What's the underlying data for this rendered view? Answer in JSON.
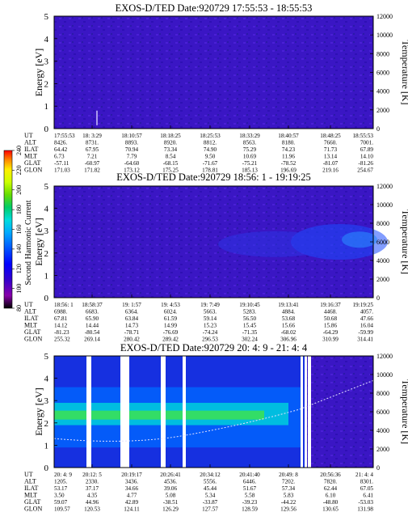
{
  "colorbar": {
    "label": "Second Harmonic Current",
    "ticks": [
      "80",
      "100",
      "120",
      "140",
      "160",
      "180",
      "200",
      "220",
      "240"
    ],
    "colors": [
      "#000000",
      "#8800aa",
      "#3300cc",
      "#0000ff",
      "#0055ff",
      "#00aaff",
      "#00dddd",
      "#00cc66",
      "#66dd00",
      "#ccff00",
      "#ffee00",
      "#ff8800",
      "#ff0000"
    ]
  },
  "panels": [
    {
      "title": "EXOS-D/TED   Date:920729   17:55:53 - 18:55:53",
      "ylabel_left": "Energy [eV]",
      "ylabel_right": "Temperature [K]",
      "left_ticks": [
        "0",
        "1",
        "2",
        "3",
        "4",
        "5"
      ],
      "right_ticks": [
        "0",
        "2000",
        "4000",
        "6000",
        "8000",
        "10000",
        "12000"
      ],
      "row_labels": [
        "UT",
        "ALT",
        "ILAT",
        "MLT",
        "GLAT",
        "GLON"
      ],
      "columns": [
        [
          "17:55:53",
          "8426.",
          "64.42",
          "6.73",
          "-57.11",
          "171.03"
        ],
        [
          "18: 3:29",
          "8731.",
          "67.95",
          "7.21",
          "-60.97",
          "171.82"
        ],
        [
          "18:10:57",
          "8893.",
          "70.94",
          "7.79",
          "-64.60",
          "173.12"
        ],
        [
          "18:18:25",
          "8920.",
          "73.34",
          "8.54",
          "-68.15",
          "175.25"
        ],
        [
          "18:25:53",
          "8812.",
          "74.90",
          "9.50",
          "-71.67",
          "178.81"
        ],
        [
          "18:33:29",
          "8563.",
          "75.29",
          "10.69",
          "-75.21",
          "185.13"
        ],
        [
          "18:40:57",
          "8180.",
          "74.23",
          "11.96",
          "-78.52",
          "196.69"
        ],
        [
          "18:48:25",
          "7660.",
          "71.73",
          "13.14",
          "-81.07",
          "219.16"
        ],
        [
          "18:55:53",
          "7001.",
          "67.89",
          "14.10",
          "-81.26",
          "254.67"
        ]
      ]
    },
    {
      "title": "EXOS-D/TED   Date:920729   18:56: 1 - 19:19:25",
      "ylabel_left": "Energy [eV]",
      "ylabel_right": "Temperature [K]",
      "left_ticks": [
        "0",
        "1",
        "2",
        "3",
        "4",
        "5"
      ],
      "right_ticks": [
        "0",
        "2000",
        "4000",
        "6000",
        "8000",
        "10000",
        "12000"
      ],
      "row_labels": [
        "UT",
        "ALT",
        "ILAT",
        "MLT",
        "GLAT",
        "GLON"
      ],
      "columns": [
        [
          "18:56: 1",
          "6988.",
          "67.81",
          "14.12",
          "-81.23",
          "255.32"
        ],
        [
          "18:58:37",
          "6683.",
          "65.90",
          "14.44",
          "-80.54",
          "269.14"
        ],
        [
          "19: 1:57",
          "6364.",
          "63.84",
          "14.73",
          "-78.71",
          "280.42"
        ],
        [
          "19: 4:53",
          "6024.",
          "61.59",
          "14.99",
          "-76.69",
          "289.42"
        ],
        [
          "19: 7:49",
          "5663.",
          "59.14",
          "15.23",
          "-74.24",
          "296.53"
        ],
        [
          "19:10:45",
          "5283.",
          "56.50",
          "15.45",
          "-71.35",
          "302.24"
        ],
        [
          "19:13:41",
          "4884.",
          "53.68",
          "15.66",
          "-68.02",
          "306.96"
        ],
        [
          "19:16:37",
          "4468.",
          "50.68",
          "15.86",
          "-64.29",
          "310.99"
        ],
        [
          "19:19:25",
          "4057.",
          "47.66",
          "16.04",
          "-59.99",
          "314.41"
        ]
      ]
    },
    {
      "title": "EXOS-D/TED   Date:920729   20: 4: 9 - 21: 4: 4",
      "ylabel_left": "Energy [eV]",
      "ylabel_right": "Temperature [K]",
      "left_ticks": [
        "0",
        "1",
        "2",
        "3",
        "4",
        "5"
      ],
      "right_ticks": [
        "0",
        "2000",
        "4000",
        "6000",
        "8000",
        "10000",
        "12000"
      ],
      "row_labels": [
        "UT",
        "ALT",
        "ILAT",
        "MLT",
        "GLAT",
        "GLON"
      ],
      "columns": [
        [
          "20: 4: 9",
          "1205.",
          "53.17",
          "3.50",
          "59.07",
          "109.57"
        ],
        [
          "20:12: 5",
          "2330.",
          "37.17",
          "4.35",
          "44.96",
          "120.53"
        ],
        [
          "20:19:17",
          "3436.",
          "34.66",
          "4.77",
          "42.89",
          "124.11"
        ],
        [
          "20:26:41",
          "4536.",
          "39.06",
          "5.08",
          "-38.51",
          "126.29"
        ],
        [
          "20:34:12",
          "5556.",
          "45.44",
          "5.34",
          "-33.87",
          "127.57"
        ],
        [
          "20:41:40",
          "6446.",
          "51.67",
          "5.58",
          "-39.23",
          "128.59"
        ],
        [
          "20:49: 8",
          "7202.",
          "57.34",
          "5.83",
          "-44.22",
          "129.56"
        ],
        [
          "20:56:36",
          "7820.",
          "62.44",
          "6.10",
          "-48.80",
          "130.65"
        ],
        [
          "21: 4: 4",
          "8301.",
          "67.05",
          "6.41",
          "-53.03",
          "131.98"
        ]
      ]
    }
  ]
}
